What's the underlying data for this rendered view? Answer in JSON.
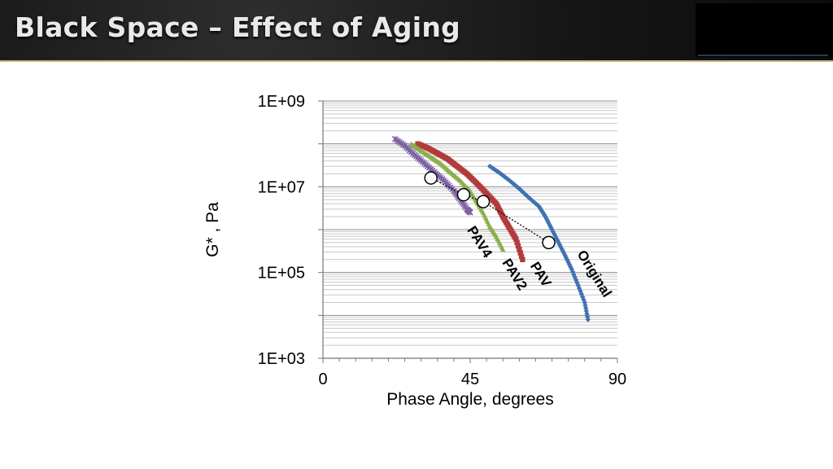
{
  "slide": {
    "title": "Black Space – Effect of Aging"
  },
  "chart_data": {
    "type": "scatter",
    "title": "",
    "xlabel": "Phase Angle, degrees",
    "ylabel": "G* , Pa",
    "xlim": [
      0,
      90
    ],
    "ylim": [
      1000,
      1000000000
    ],
    "y_scale": "log",
    "x_ticks": [
      "0",
      "45",
      "90"
    ],
    "y_ticks": [
      "1E+03",
      "1E+05",
      "1E+07",
      "1E+09"
    ],
    "grid": "horizontal",
    "series": [
      {
        "name": "Original",
        "color": "#3f72b3",
        "marker": "diamond",
        "points": [
          [
            51,
            30000000
          ],
          [
            54,
            21000000
          ],
          [
            57,
            14000000
          ],
          [
            60,
            9000000
          ],
          [
            63,
            5500000
          ],
          [
            66,
            3500000
          ],
          [
            68,
            2000000
          ],
          [
            70,
            1000000
          ],
          [
            72,
            500000
          ],
          [
            74,
            250000
          ],
          [
            76,
            120000
          ],
          [
            78,
            50000
          ],
          [
            80,
            20000
          ],
          [
            81,
            8000
          ]
        ]
      },
      {
        "name": "PAV",
        "color": "#b33b3b",
        "marker": "square",
        "points": [
          [
            29,
            100000000
          ],
          [
            32,
            80000000
          ],
          [
            35,
            60000000
          ],
          [
            38,
            45000000
          ],
          [
            41,
            30000000
          ],
          [
            44,
            20000000
          ],
          [
            47,
            12000000
          ],
          [
            50,
            7000000
          ],
          [
            53,
            4000000
          ],
          [
            55,
            2000000
          ],
          [
            57,
            1100000
          ],
          [
            59,
            600000
          ],
          [
            61,
            200000
          ]
        ]
      },
      {
        "name": "PAV2",
        "color": "#8aaf4c",
        "marker": "triangle",
        "points": [
          [
            27,
            100000000
          ],
          [
            30,
            70000000
          ],
          [
            33,
            50000000
          ],
          [
            36,
            35000000
          ],
          [
            39,
            22000000
          ],
          [
            42,
            14000000
          ],
          [
            45,
            8000000
          ],
          [
            47,
            4500000
          ],
          [
            49,
            2500000
          ],
          [
            51,
            1200000
          ],
          [
            53,
            700000
          ],
          [
            55,
            350000
          ]
        ]
      },
      {
        "name": "PAV4",
        "color": "#7d63a5",
        "marker": "cross",
        "points": [
          [
            22,
            130000000
          ],
          [
            25,
            90000000
          ],
          [
            28,
            55000000
          ],
          [
            31,
            35000000
          ],
          [
            34,
            22000000
          ],
          [
            37,
            14000000
          ],
          [
            40,
            8000000
          ],
          [
            42,
            5000000
          ],
          [
            44,
            3000000
          ],
          [
            45,
            2500000
          ]
        ]
      }
    ],
    "crossover_points": [
      [
        33,
        16000000
      ],
      [
        43,
        6500000
      ],
      [
        49,
        4500000
      ],
      [
        69,
        500000
      ]
    ]
  }
}
